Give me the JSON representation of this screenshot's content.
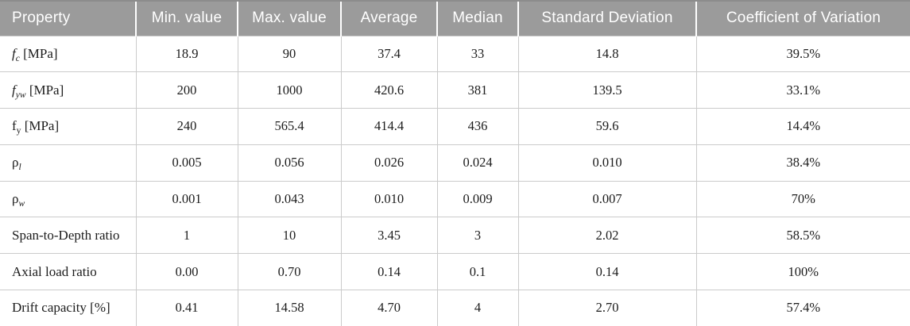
{
  "table": {
    "headers": [
      "Property",
      "Min. value",
      "Max. value",
      "Average",
      "Median",
      "Standard Deviation",
      "Coefficient of Variation"
    ],
    "rows": [
      {
        "property": {
          "base": "f",
          "base_italic": true,
          "sub": "c",
          "sub_italic": true,
          "rest": " [MPa]"
        },
        "values": [
          "18.9",
          "90",
          "37.4",
          "33",
          "14.8",
          "39.5%"
        ]
      },
      {
        "property": {
          "base": "f",
          "base_italic": true,
          "sub": "yw",
          "sub_italic": true,
          "rest": " [MPa]"
        },
        "values": [
          "200",
          "1000",
          "420.6",
          "381",
          "139.5",
          "33.1%"
        ]
      },
      {
        "property": {
          "base": "f",
          "base_italic": false,
          "sub": "y",
          "sub_italic": false,
          "rest": " [MPa]"
        },
        "values": [
          "240",
          "565.4",
          "414.4",
          "436",
          "59.6",
          "14.4%"
        ]
      },
      {
        "property": {
          "base": "ρ",
          "base_italic": false,
          "sub": "l",
          "sub_italic": true,
          "rest": ""
        },
        "values": [
          "0.005",
          "0.056",
          "0.026",
          "0.024",
          "0.010",
          "38.4%"
        ]
      },
      {
        "property": {
          "base": "ρ",
          "base_italic": false,
          "sub": "w",
          "sub_italic": true,
          "rest": ""
        },
        "values": [
          "0.001",
          "0.043",
          "0.010",
          "0.009",
          "0.007",
          "70%"
        ]
      },
      {
        "property": {
          "base": "Span-to-Depth ratio",
          "base_italic": false,
          "sub": "",
          "sub_italic": false,
          "rest": ""
        },
        "values": [
          "1",
          "10",
          "3.45",
          "3",
          "2.02",
          "58.5%"
        ]
      },
      {
        "property": {
          "base": "Axial load ratio",
          "base_italic": false,
          "sub": "",
          "sub_italic": false,
          "rest": ""
        },
        "values": [
          "0.00",
          "0.70",
          "0.14",
          "0.1",
          "0.14",
          "100%"
        ]
      },
      {
        "property": {
          "base": "Drift capacity [%]",
          "base_italic": false,
          "sub": "",
          "sub_italic": false,
          "rest": ""
        },
        "values": [
          "0.41",
          "14.58",
          "4.70",
          "4",
          "2.70",
          "57.4%"
        ]
      }
    ],
    "colors": {
      "header_background": "#9b9b9b",
      "header_text": "#ffffff",
      "body_text": "#1c1c1c",
      "grid_line": "#cbcbcb"
    }
  }
}
